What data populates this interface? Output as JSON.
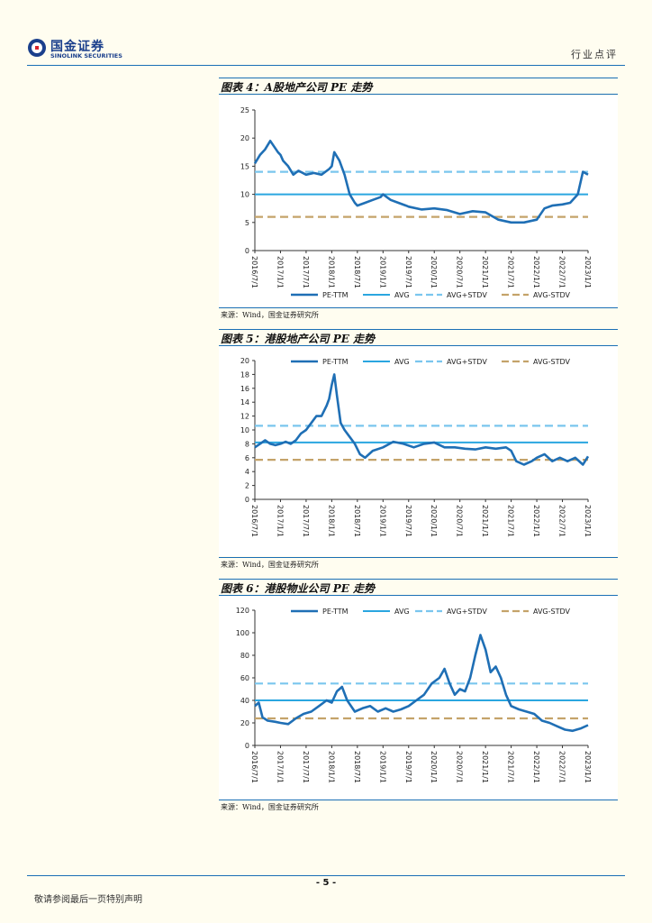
{
  "header": {
    "logo_cn": "国金证券",
    "logo_en": "SINOLINK SECURITIES",
    "section_label": "行业点评",
    "brand_color": "#1a3f8c"
  },
  "figures": [
    {
      "title": "图表 4：A股地产公司 PE 走势",
      "source": "来源：Wind，国金证券研究所"
    },
    {
      "title": "图表 5：港股地产公司 PE 走势",
      "source": "来源：Wind，国金证券研究所"
    },
    {
      "title": "图表 6：港股物业公司 PE 走势",
      "source": "来源：Wind，国金证券研究所"
    }
  ],
  "chart_data": [
    {
      "type": "line",
      "x_ticks": [
        "2016/7/1",
        "2017/1/1",
        "2017/7/1",
        "2018/1/1",
        "2018/7/1",
        "2019/1/1",
        "2019/7/1",
        "2020/1/1",
        "2020/7/1",
        "2021/1/1",
        "2021/7/1",
        "2022/1/1",
        "2022/7/1",
        "2023/1/1"
      ],
      "ylim": [
        0,
        25
      ],
      "y_ticks": [
        0,
        5,
        10,
        15,
        20,
        25
      ],
      "legend_position": "bottom",
      "series": [
        {
          "name": "PE-TTM",
          "style": "solid-thick",
          "color": "#1f6fb5",
          "x": [
            0,
            0.2,
            0.4,
            0.6,
            0.9,
            1.0,
            1.1,
            1.3,
            1.5,
            1.7,
            2.0,
            2.3,
            2.6,
            2.9,
            3.0,
            3.1,
            3.3,
            3.5,
            3.7,
            3.9,
            4.0,
            4.3,
            4.6,
            4.9,
            5.0,
            5.3,
            5.6,
            5.9,
            6.0,
            6.5,
            7.0,
            7.5,
            8.0,
            8.5,
            9.0,
            9.5,
            10.0,
            10.5,
            11.0,
            11.3,
            11.6,
            12.0,
            12.3,
            12.6,
            12.8,
            13.0
          ],
          "y": [
            15.5,
            17,
            18,
            19.5,
            17.5,
            17,
            16,
            15,
            13.5,
            14.2,
            13.5,
            13.8,
            13.5,
            14.5,
            15,
            17.5,
            16,
            13.5,
            10,
            8.5,
            8,
            8.5,
            9,
            9.5,
            10,
            9,
            8.5,
            8,
            7.8,
            7.3,
            7.5,
            7.2,
            6.5,
            7.0,
            6.8,
            5.5,
            5,
            5,
            5.5,
            7.5,
            8,
            8.2,
            8.5,
            10,
            14,
            13.5
          ]
        },
        {
          "name": "AVG",
          "style": "solid",
          "color": "#2aa6e0",
          "x": [
            0,
            13
          ],
          "y": [
            10,
            10
          ]
        },
        {
          "name": "AVG+STDV",
          "style": "dashed",
          "color": "#7ac6ee",
          "x": [
            0,
            13
          ],
          "y": [
            14,
            14
          ]
        },
        {
          "name": "AVG-STDV",
          "style": "dashed",
          "color": "#c4a36a",
          "x": [
            0,
            13
          ],
          "y": [
            6,
            6
          ]
        }
      ]
    },
    {
      "type": "line",
      "x_ticks": [
        "2016/7/1",
        "2017/1/1",
        "2017/7/1",
        "2018/1/1",
        "2018/7/1",
        "2019/1/1",
        "2019/7/1",
        "2020/1/1",
        "2020/7/1",
        "2021/1/1",
        "2021/7/1",
        "2022/1/1",
        "2022/7/1",
        "2023/1/1"
      ],
      "ylim": [
        0,
        20
      ],
      "y_ticks": [
        0,
        2,
        4,
        6,
        8,
        10,
        12,
        14,
        16,
        18,
        20
      ],
      "legend_position": "top",
      "series": [
        {
          "name": "PE-TTM",
          "style": "solid-thick",
          "color": "#1f6fb5",
          "x": [
            0,
            0.2,
            0.4,
            0.6,
            0.8,
            1.0,
            1.2,
            1.4,
            1.6,
            1.8,
            2.0,
            2.2,
            2.4,
            2.6,
            2.8,
            2.9,
            3.0,
            3.1,
            3.2,
            3.35,
            3.5,
            3.7,
            3.9,
            4.1,
            4.3,
            4.6,
            5.0,
            5.4,
            5.8,
            6.2,
            6.6,
            7.0,
            7.4,
            7.8,
            8.2,
            8.6,
            9.0,
            9.4,
            9.8,
            10.0,
            10.2,
            10.5,
            10.8,
            11.0,
            11.3,
            11.6,
            11.9,
            12.2,
            12.5,
            12.8,
            13.0
          ],
          "y": [
            7.5,
            8,
            8.5,
            8,
            7.8,
            8,
            8.3,
            8,
            8.5,
            9.5,
            10,
            11,
            12,
            12,
            13.5,
            14.5,
            16.5,
            18,
            15,
            11,
            10,
            9,
            8,
            6.5,
            6,
            7,
            7.5,
            8.3,
            8,
            7.5,
            8,
            8.2,
            7.5,
            7.5,
            7.3,
            7.2,
            7.5,
            7.3,
            7.5,
            7.0,
            5.5,
            5,
            5.5,
            6,
            6.5,
            5.5,
            6,
            5.5,
            6,
            5,
            6.2
          ]
        },
        {
          "name": "AVG",
          "style": "solid",
          "color": "#2aa6e0",
          "x": [
            0,
            13
          ],
          "y": [
            8.2,
            8.2
          ]
        },
        {
          "name": "AVG+STDV",
          "style": "dashed",
          "color": "#7ac6ee",
          "x": [
            0,
            13
          ],
          "y": [
            10.6,
            10.6
          ]
        },
        {
          "name": "AVG-STDV",
          "style": "dashed",
          "color": "#c4a36a",
          "x": [
            0,
            13
          ],
          "y": [
            5.7,
            5.7
          ]
        }
      ]
    },
    {
      "type": "line",
      "x_ticks": [
        "2016/7/1",
        "2017/1/1",
        "2017/7/1",
        "2018/1/1",
        "2018/7/1",
        "2019/1/1",
        "2019/7/1",
        "2020/1/1",
        "2020/7/1",
        "2021/1/1",
        "2021/7/1",
        "2022/1/1",
        "2022/7/1",
        "2023/1/1"
      ],
      "ylim": [
        0,
        120
      ],
      "y_ticks": [
        0,
        20,
        40,
        60,
        80,
        100,
        120
      ],
      "legend_position": "top",
      "series": [
        {
          "name": "PE-TTM",
          "style": "solid-thick",
          "color": "#1f6fb5",
          "x": [
            0,
            0.15,
            0.3,
            0.5,
            0.8,
            1.0,
            1.3,
            1.6,
            1.9,
            2.2,
            2.5,
            2.8,
            3.0,
            3.2,
            3.4,
            3.6,
            3.9,
            4.2,
            4.5,
            4.8,
            5.1,
            5.4,
            5.7,
            6.0,
            6.3,
            6.6,
            6.9,
            7.2,
            7.4,
            7.6,
            7.8,
            8.0,
            8.2,
            8.4,
            8.6,
            8.8,
            9.0,
            9.2,
            9.4,
            9.6,
            9.8,
            10.0,
            10.3,
            10.6,
            10.9,
            11.2,
            11.5,
            11.8,
            12.1,
            12.4,
            12.7,
            13.0
          ],
          "y": [
            35,
            38,
            25,
            22,
            21,
            20,
            19,
            24,
            28,
            30,
            35,
            40,
            38,
            48,
            52,
            40,
            30,
            33,
            35,
            30,
            33,
            30,
            32,
            35,
            40,
            45,
            55,
            60,
            68,
            55,
            45,
            50,
            48,
            60,
            80,
            98,
            85,
            65,
            70,
            60,
            45,
            35,
            32,
            30,
            28,
            22,
            20,
            17,
            14,
            13,
            15,
            18
          ]
        },
        {
          "name": "AVG",
          "style": "solid",
          "color": "#2aa6e0",
          "x": [
            0,
            13
          ],
          "y": [
            40,
            40
          ]
        },
        {
          "name": "AVG+STDV",
          "style": "dashed",
          "color": "#7ac6ee",
          "x": [
            0,
            13
          ],
          "y": [
            55,
            55
          ]
        },
        {
          "name": "AVG-STDV",
          "style": "dashed",
          "color": "#c4a36a",
          "x": [
            0,
            13
          ],
          "y": [
            24,
            24
          ]
        }
      ]
    }
  ],
  "footer": {
    "page_number": "- 5 -",
    "note": "敬请参阅最后一页特别声明"
  }
}
